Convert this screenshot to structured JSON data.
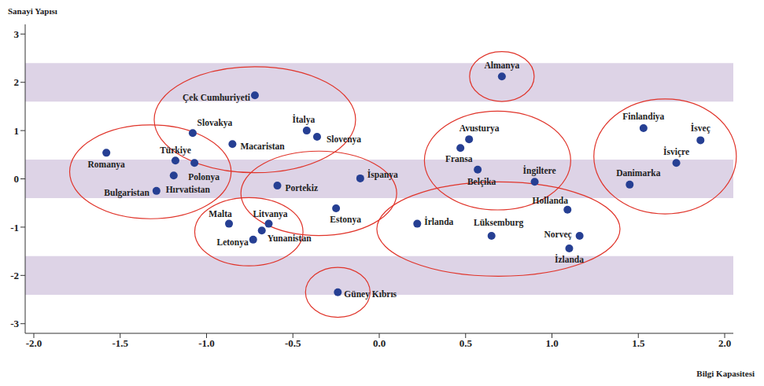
{
  "chart_data": {
    "type": "scatter",
    "x_label": "Bilgi Kapasitesi",
    "y_label": "Sanayi Yapısı",
    "xlim": [
      -2.05,
      2.05
    ],
    "ylim": [
      -3.2,
      3.2
    ],
    "xticks": [
      {
        "value": -2,
        "label": "-2.0"
      },
      {
        "value": -1.5,
        "label": "-1.5"
      },
      {
        "value": -1,
        "label": "-1.0"
      },
      {
        "value": -0.5,
        "label": "-0.5"
      },
      {
        "value": 0,
        "label": "0.0"
      },
      {
        "value": 0.5,
        "label": "0.5"
      },
      {
        "value": 1,
        "label": "1.0"
      },
      {
        "value": 1.5,
        "label": "1.5"
      },
      {
        "value": 2,
        "label": "2.0"
      }
    ],
    "yticks": [
      -3,
      -2,
      -1,
      0,
      1,
      2,
      3
    ],
    "grid": false,
    "bands": [
      [
        1.6,
        2.4
      ],
      [
        -0.4,
        0.4
      ],
      [
        -2.4,
        -1.6
      ]
    ],
    "series": [
      {
        "color": "#263f93",
        "marker": "circle",
        "points": [
          {
            "label": "Almanya",
            "x": 0.71,
            "y": 2.12
          }
        ]
      },
      {
        "color": "#263f93",
        "marker": "circle",
        "points": [
          {
            "label": "Çek Cumhuriyeti",
            "x": -0.72,
            "y": 1.73
          },
          {
            "label": "Slovakya",
            "x": -1.08,
            "y": 0.95
          },
          {
            "label": "Macaristan",
            "x": -0.85,
            "y": 0.72
          },
          {
            "label": "İtalya",
            "x": -0.42,
            "y": 1.0
          },
          {
            "label": "Slovenya",
            "x": -0.36,
            "y": 0.87
          }
        ]
      },
      {
        "color": "#263f93",
        "marker": "circle",
        "points": [
          {
            "label": "Romanya",
            "x": -1.58,
            "y": 0.54
          },
          {
            "label": "Türkiye",
            "x": -1.18,
            "y": 0.38
          },
          {
            "label": "Polonya",
            "x": -1.07,
            "y": 0.33
          },
          {
            "label": "Hırvatistan",
            "x": -1.19,
            "y": 0.07
          },
          {
            "label": "Bulgaristan",
            "x": -1.29,
            "y": -0.25
          }
        ]
      },
      {
        "color": "#263f93",
        "marker": "circle",
        "points": [
          {
            "label": "Portekiz",
            "x": -0.59,
            "y": -0.14
          },
          {
            "label": "İspanya",
            "x": -0.11,
            "y": 0.01
          },
          {
            "label": "Estonya",
            "x": -0.25,
            "y": -0.61
          }
        ]
      },
      {
        "color": "#263f93",
        "marker": "circle",
        "points": [
          {
            "label": "Malta",
            "x": -0.87,
            "y": -0.93
          },
          {
            "label": "Litvanya",
            "x": -0.64,
            "y": -0.93
          },
          {
            "label": "Yunanistan",
            "x": -0.68,
            "y": -1.07
          },
          {
            "label": "Letonya",
            "x": -0.73,
            "y": -1.26
          }
        ]
      },
      {
        "color": "#263f93",
        "marker": "circle",
        "points": [
          {
            "label": "Güney Kıbrıs",
            "x": -0.24,
            "y": -2.35
          }
        ]
      },
      {
        "color": "#263f93",
        "marker": "circle",
        "points": [
          {
            "label": "Avusturya",
            "x": 0.52,
            "y": 0.82
          },
          {
            "label": "Fransa",
            "x": 0.47,
            "y": 0.64
          },
          {
            "label": "Belçika",
            "x": 0.57,
            "y": 0.19
          },
          {
            "label": "İngiltere",
            "x": 0.9,
            "y": -0.06
          }
        ]
      },
      {
        "color": "#263f93",
        "marker": "circle",
        "points": [
          {
            "label": "İrlanda",
            "x": 0.22,
            "y": -0.93
          },
          {
            "label": "Lüksemburg",
            "x": 0.65,
            "y": -1.18
          },
          {
            "label": "Hollanda",
            "x": 1.09,
            "y": -0.64
          },
          {
            "label": "Norveç",
            "x": 1.16,
            "y": -1.18
          },
          {
            "label": "İzlanda",
            "x": 1.1,
            "y": -1.44
          }
        ]
      },
      {
        "color": "#263f93",
        "marker": "circle",
        "points": [
          {
            "label": "Finlandiya",
            "x": 1.53,
            "y": 1.05
          },
          {
            "label": "İsveç",
            "x": 1.86,
            "y": 0.8
          },
          {
            "label": "İsviçre",
            "x": 1.72,
            "y": 0.33
          },
          {
            "label": "Danimarka",
            "x": 1.45,
            "y": -0.12
          }
        ]
      }
    ]
  }
}
